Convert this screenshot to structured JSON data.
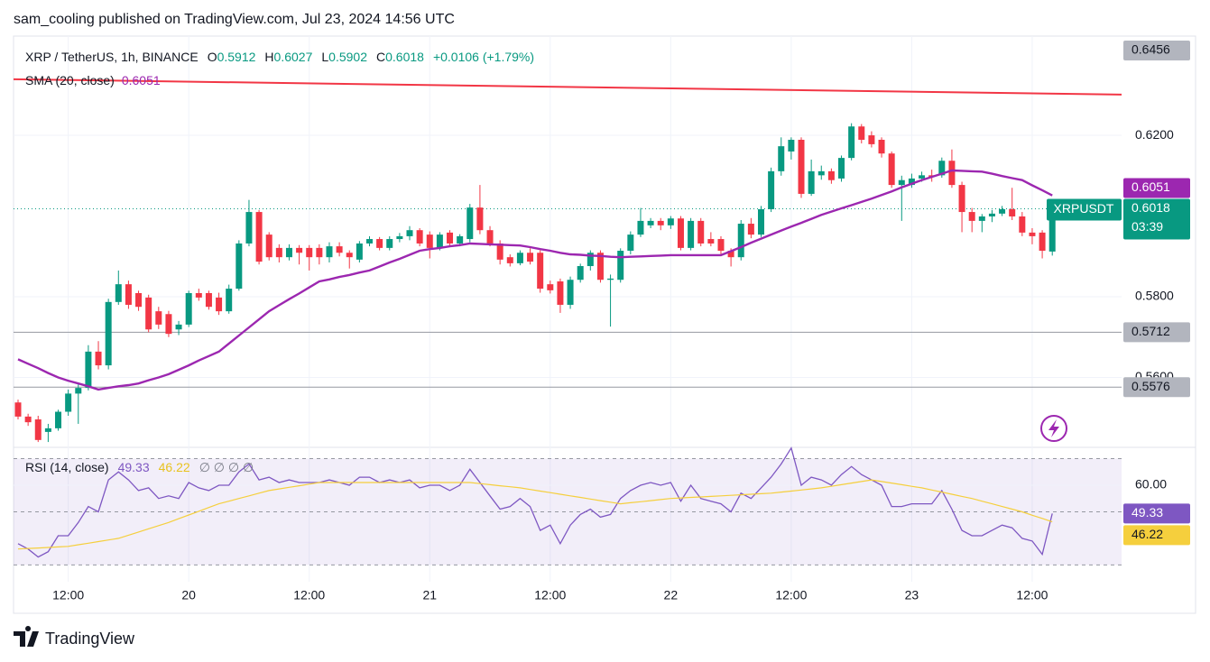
{
  "header": "sam_cooling published on TradingView.com, Jul 23, 2024 14:56 UTC",
  "footer": {
    "brand": "TradingView"
  },
  "chart_data": [
    {
      "type": "candlestick",
      "title": "XRP / TetherUS, 1h, BINANCE",
      "legend_labels": {
        "open": "O",
        "high": "H",
        "low": "L",
        "close": "C"
      },
      "change": "+0.0106 (+1.79%)",
      "symbol": "XRPUSDT",
      "countdown": "03:39",
      "up_color": "#089981",
      "down_color": "#f23645",
      "open": [
        0.5538,
        0.5503,
        0.5496,
        0.5465,
        0.5474,
        0.5515,
        0.556,
        0.5574,
        0.5664,
        0.563,
        0.5787,
        0.5831,
        0.5809,
        0.5798,
        0.5764,
        0.5757,
        0.5719,
        0.5731,
        0.5809,
        0.5809,
        0.5798,
        0.5764,
        0.582,
        0.5932,
        0.601,
        0.5954,
        0.5921,
        0.5898,
        0.5921,
        0.5921,
        0.5921,
        0.5898,
        0.5925,
        0.5909,
        0.5892,
        0.5932,
        0.5943,
        0.5921,
        0.5943,
        0.595,
        0.5965,
        0.5954,
        0.5921,
        0.5959,
        0.5932,
        0.5943,
        0.6021,
        0.5965,
        0.5932,
        0.5898,
        0.5883,
        0.5909,
        0.5909,
        0.5831,
        0.5838,
        0.578,
        0.5842,
        0.5876,
        0.5909,
        0.5842,
        0.5842,
        0.5914,
        0.5954,
        0.5977,
        0.5988,
        0.5977,
        0.5994,
        0.5921,
        0.5988,
        0.5943,
        0.5943,
        0.5914,
        0.5898,
        0.5981,
        0.5954,
        0.6017,
        0.6111,
        0.616,
        0.6189,
        0.6055,
        0.6101,
        0.6111,
        0.6093,
        0.6144,
        0.6222,
        0.62,
        0.6189,
        0.6155,
        0.6077,
        0.6077,
        0.6093,
        0.6101,
        0.6101,
        0.6137,
        0.6077,
        0.601,
        0.5988,
        0.5999,
        0.6006,
        0.6017,
        0.5999,
        0.5959,
        0.5959,
        0.5912
      ],
      "high": [
        0.5545,
        0.551,
        0.5505,
        0.5485,
        0.552,
        0.557,
        0.5585,
        0.568,
        0.569,
        0.5795,
        0.5865,
        0.584,
        0.5815,
        0.5805,
        0.5775,
        0.5765,
        0.574,
        0.5815,
        0.582,
        0.5815,
        0.581,
        0.583,
        0.594,
        0.604,
        0.6015,
        0.596,
        0.593,
        0.593,
        0.5928,
        0.5928,
        0.593,
        0.5935,
        0.5935,
        0.5915,
        0.5938,
        0.595,
        0.5948,
        0.595,
        0.5958,
        0.5975,
        0.597,
        0.5962,
        0.596,
        0.5965,
        0.5955,
        0.603,
        0.6077,
        0.5975,
        0.594,
        0.5905,
        0.5915,
        0.592,
        0.5915,
        0.584,
        0.5845,
        0.585,
        0.5882,
        0.5915,
        0.5915,
        0.5855,
        0.592,
        0.5962,
        0.602,
        0.5995,
        0.5995,
        0.6,
        0.6,
        0.5995,
        0.5995,
        0.596,
        0.595,
        0.592,
        0.599,
        0.5995,
        0.6025,
        0.612,
        0.6195,
        0.6195,
        0.6195,
        0.614,
        0.6125,
        0.6118,
        0.615,
        0.623,
        0.6228,
        0.621,
        0.6195,
        0.616,
        0.61,
        0.6105,
        0.611,
        0.6115,
        0.6145,
        0.6165,
        0.6085,
        0.602,
        0.6005,
        0.6015,
        0.6025,
        0.607,
        0.601,
        0.597,
        0.5965,
        0.6027
      ],
      "low": [
        0.5496,
        0.548,
        0.544,
        0.544,
        0.5468,
        0.5505,
        0.5485,
        0.5568,
        0.562,
        0.562,
        0.578,
        0.577,
        0.5765,
        0.5712,
        0.572,
        0.57,
        0.5705,
        0.5725,
        0.579,
        0.5768,
        0.5755,
        0.5758,
        0.5815,
        0.5925,
        0.588,
        0.589,
        0.5885,
        0.589,
        0.588,
        0.5865,
        0.588,
        0.5885,
        0.59,
        0.587,
        0.5885,
        0.5925,
        0.5915,
        0.5915,
        0.5935,
        0.594,
        0.5925,
        0.5895,
        0.5915,
        0.5925,
        0.5925,
        0.5935,
        0.5955,
        0.5925,
        0.588,
        0.5875,
        0.5878,
        0.588,
        0.581,
        0.5808,
        0.576,
        0.577,
        0.5835,
        0.5865,
        0.5835,
        0.5726,
        0.5835,
        0.5905,
        0.5948,
        0.597,
        0.5965,
        0.5968,
        0.5915,
        0.5915,
        0.5925,
        0.5925,
        0.5905,
        0.5875,
        0.589,
        0.5945,
        0.5948,
        0.601,
        0.61,
        0.614,
        0.6045,
        0.605,
        0.609,
        0.608,
        0.6085,
        0.6138,
        0.618,
        0.617,
        0.6145,
        0.607,
        0.5988,
        0.607,
        0.6085,
        0.6085,
        0.6095,
        0.607,
        0.596,
        0.596,
        0.596,
        0.5985,
        0.6,
        0.599,
        0.595,
        0.593,
        0.5895,
        0.5902
      ],
      "close": [
        0.5503,
        0.5489,
        0.5445,
        0.5474,
        0.5515,
        0.556,
        0.5574,
        0.5664,
        0.563,
        0.5787,
        0.5831,
        0.578,
        0.5775,
        0.5719,
        0.5731,
        0.5708,
        0.5731,
        0.5809,
        0.5798,
        0.5775,
        0.5764,
        0.582,
        0.5932,
        0.601,
        0.5887,
        0.5898,
        0.5898,
        0.5921,
        0.5909,
        0.5898,
        0.5898,
        0.5925,
        0.5909,
        0.5898,
        0.5932,
        0.5943,
        0.5921,
        0.5943,
        0.595,
        0.5965,
        0.5932,
        0.5921,
        0.5954,
        0.5932,
        0.595,
        0.6021,
        0.5965,
        0.5932,
        0.5892,
        0.5883,
        0.5909,
        0.5887,
        0.582,
        0.5816,
        0.578,
        0.5842,
        0.5876,
        0.5909,
        0.5842,
        0.5845,
        0.5914,
        0.5954,
        0.5988,
        0.5988,
        0.5977,
        0.5994,
        0.5921,
        0.5988,
        0.5932,
        0.5932,
        0.5914,
        0.5898,
        0.5981,
        0.5954,
        0.6017,
        0.6111,
        0.6173,
        0.6189,
        0.6055,
        0.6111,
        0.6111,
        0.6089,
        0.6144,
        0.6222,
        0.6189,
        0.6178,
        0.6155,
        0.6077,
        0.6089,
        0.6093,
        0.6101,
        0.6097,
        0.6137,
        0.6077,
        0.601,
        0.5988,
        0.5999,
        0.6006,
        0.6017,
        0.5999,
        0.5959,
        0.595,
        0.5914,
        0.6018
      ],
      "overlays": [
        {
          "name": "SMA (20, close)",
          "color": "#9c27b0",
          "values": [
            0.5645,
            0.5634,
            0.5623,
            0.5611,
            0.56,
            0.5592,
            0.5585,
            0.5578,
            0.557,
            0.5574,
            0.5578,
            0.5581,
            0.5585,
            0.5593,
            0.56,
            0.5608,
            0.5619,
            0.563,
            0.5642,
            0.5653,
            0.5664,
            0.5684,
            0.5704,
            0.5724,
            0.5744,
            0.5764,
            0.5779,
            0.5794,
            0.5808,
            0.5823,
            0.5838,
            0.5843,
            0.5849,
            0.5854,
            0.586,
            0.5865,
            0.5875,
            0.5885,
            0.5894,
            0.5904,
            0.5914,
            0.5918,
            0.5921,
            0.5925,
            0.5928,
            0.5932,
            0.5931,
            0.593,
            0.5929,
            0.5928,
            0.5927,
            0.5923,
            0.5918,
            0.5914,
            0.5909,
            0.5905,
            0.5904,
            0.5902,
            0.5901,
            0.5899,
            0.5898,
            0.5899,
            0.59,
            0.5901,
            0.5902,
            0.5903,
            0.5903,
            0.5903,
            0.5903,
            0.5903,
            0.5903,
            0.5913,
            0.5923,
            0.5934,
            0.5944,
            0.5954,
            0.5964,
            0.5974,
            0.5983,
            0.5993,
            0.6003,
            0.6011,
            0.6019,
            0.6027,
            0.6035,
            0.6043,
            0.6052,
            0.6061,
            0.6071,
            0.608,
            0.6089,
            0.6097,
            0.6105,
            0.6113,
            0.6112,
            0.6111,
            0.611,
            0.6105,
            0.6099,
            0.6094,
            0.6089,
            0.6076,
            0.6064,
            0.6051
          ]
        }
      ],
      "trendline": {
        "color": "#f23645",
        "x": [
          -0.45,
          109.9
        ],
        "values": [
          0.6339,
          0.6301
        ]
      },
      "price_lines": [
        0.6456,
        0.5712,
        0.5576
      ],
      "ylim": [
        0.5429,
        0.6446
      ],
      "yticks": [
        {
          "value": 0.62,
          "label": "0.6200"
        },
        {
          "value": 0.58,
          "label": "0.5800"
        },
        {
          "value": 0.56,
          "label": "0.5600"
        }
      ],
      "xlim": [
        -0.45,
        109.9
      ],
      "xticks": [
        {
          "value": 5,
          "label": "12:00"
        },
        {
          "value": 17,
          "label": "20"
        },
        {
          "value": 29,
          "label": "12:00"
        },
        {
          "value": 41,
          "label": "21"
        },
        {
          "value": 53,
          "label": "12:00"
        },
        {
          "value": 65,
          "label": "22"
        },
        {
          "value": 77,
          "label": "12:00"
        },
        {
          "value": 89,
          "label": "23"
        },
        {
          "value": 101,
          "label": "12:00"
        }
      ],
      "grid": true
    },
    {
      "type": "line",
      "title": "RSI (14, close)",
      "extras": "∅ ∅ ∅ ∅",
      "series": [
        {
          "color": "#7e57c2",
          "values": [
            38,
            36,
            33,
            35,
            41,
            41,
            46,
            52,
            50,
            62,
            65,
            62,
            58,
            59,
            55,
            56,
            55,
            61,
            59,
            58,
            60,
            60,
            65,
            68,
            62,
            63,
            61,
            62,
            61,
            61,
            61,
            62,
            61,
            60,
            63,
            63,
            61,
            62,
            61,
            62,
            59,
            60,
            60,
            58,
            60,
            66,
            61,
            56,
            51,
            52,
            55,
            52,
            43,
            45,
            38,
            45,
            49,
            51,
            48,
            49,
            55,
            58,
            60,
            61,
            60,
            61,
            54,
            60,
            55,
            54,
            53,
            50,
            57,
            55,
            59,
            63,
            68,
            74,
            60,
            63,
            62,
            60,
            64,
            67,
            64,
            62,
            60,
            52,
            52,
            53,
            53,
            53,
            58,
            51,
            43,
            41,
            41,
            43,
            45,
            44,
            40,
            39,
            34,
            49.33
          ]
        },
        {
          "color": "#f5cf3d",
          "values": [
            36,
            36.2,
            36.4,
            36.6,
            36.8,
            37,
            37.6,
            38.2,
            38.8,
            39.4,
            40,
            41.2,
            42.4,
            43.6,
            44.8,
            46,
            47.4,
            48.8,
            50.2,
            51.6,
            53,
            54,
            55,
            56,
            57,
            58,
            58.6,
            59.2,
            59.8,
            60.4,
            61,
            61,
            61,
            61,
            61,
            61,
            61,
            61,
            61,
            61,
            61,
            61,
            61,
            61,
            61,
            61,
            60.6,
            60.2,
            59.8,
            59.4,
            59,
            58.4,
            57.8,
            57.2,
            56.6,
            56,
            55.4,
            54.8,
            54.2,
            53.6,
            53,
            53.4,
            53.8,
            54.2,
            54.6,
            55,
            55.2,
            55.4,
            55.6,
            55.8,
            56,
            56.2,
            56.4,
            56.6,
            56.8,
            57,
            57.4,
            57.8,
            58.2,
            58.6,
            59,
            59.6,
            60.2,
            60.8,
            61.4,
            62,
            61.4,
            60.8,
            60.2,
            59.6,
            59,
            58.2,
            57.4,
            56.6,
            55.8,
            55,
            54,
            53,
            52,
            51,
            50,
            48.7,
            47.5,
            46.22
          ]
        }
      ],
      "band": [
        30,
        70
      ],
      "midline": 50,
      "ylim": [
        23.7,
        73.9
      ],
      "yticks": [
        {
          "value": 60,
          "label": "60.00"
        }
      ],
      "grid": true
    }
  ]
}
